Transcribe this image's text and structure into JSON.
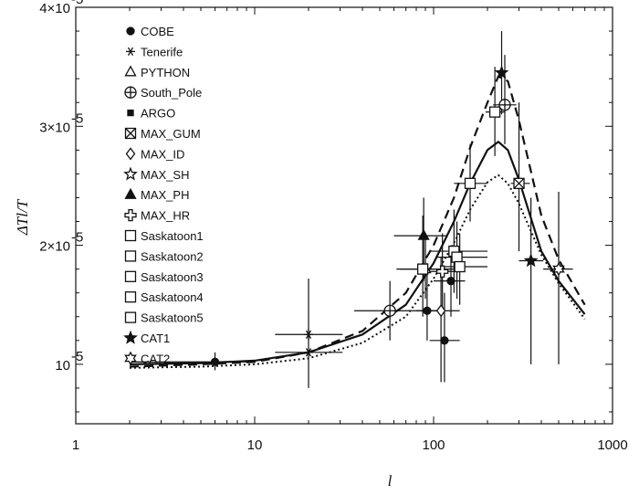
{
  "chart_data": {
    "type": "scatter",
    "xscale": "log",
    "xlim": [
      1,
      1000
    ],
    "ylim": [
      0.5,
      4
    ],
    "y_multiplier_label": "×10⁻⁵",
    "xlabel": "l",
    "ylabel": "ΔTl/T",
    "x_ticks": [
      1,
      10,
      100,
      1000
    ],
    "x_tick_labels": [
      "1",
      "10",
      "100",
      "1000"
    ],
    "y_ticks": [
      1,
      2,
      3,
      4
    ],
    "y_tick_labels": [
      "10",
      "2×10",
      "3×10",
      "4×10"
    ],
    "legend_position": "top-left",
    "legend": [
      {
        "name": "COBE",
        "marker": "filled-circle"
      },
      {
        "name": "Tenerife",
        "marker": "asterisk"
      },
      {
        "name": "PYTHON",
        "marker": "open-triangle"
      },
      {
        "name": "South_Pole",
        "marker": "circle-plus"
      },
      {
        "name": "ARGO",
        "marker": "filled-square"
      },
      {
        "name": "MAX_GUM",
        "marker": "square-cross"
      },
      {
        "name": "MAX_ID",
        "marker": "open-diamond"
      },
      {
        "name": "MAX_SH",
        "marker": "open-star"
      },
      {
        "name": "MAX_PH",
        "marker": "filled-triangle"
      },
      {
        "name": "MAX_HR",
        "marker": "open-cross"
      },
      {
        "name": "Saskatoon1",
        "marker": "open-square"
      },
      {
        "name": "Saskatoon2",
        "marker": "open-square"
      },
      {
        "name": "Saskatoon3",
        "marker": "open-square"
      },
      {
        "name": "Saskatoon4",
        "marker": "open-square"
      },
      {
        "name": "Saskatoon5",
        "marker": "open-square"
      },
      {
        "name": "CAT1",
        "marker": "filled-star"
      },
      {
        "name": "CAT2",
        "marker": "open-hexagram"
      }
    ],
    "points": [
      {
        "marker": "filled-circle",
        "x": 6,
        "y": 1.02,
        "xerr": [
          2,
          10
        ],
        "yerr": [
          0.95,
          1.1
        ]
      },
      {
        "marker": "asterisk",
        "x": 20,
        "y": 1.1,
        "xerr": [
          13,
          31
        ],
        "yerr": [
          0.8,
          1.72
        ]
      },
      {
        "marker": "asterisk",
        "x": 20,
        "y": 1.25,
        "xerr": [
          13,
          31
        ],
        "yerr": [
          1.2,
          1.3
        ]
      },
      {
        "marker": "circle-plus",
        "x": 57,
        "y": 1.45,
        "xerr": [
          36,
          88
        ],
        "yerr": [
          1.2,
          1.7
        ]
      },
      {
        "marker": "filled-circle",
        "x": 92,
        "y": 1.45,
        "xerr": [
          80,
          110
        ],
        "yerr": [
          1.2,
          1.85
        ]
      },
      {
        "marker": "filled-triangle",
        "x": 88,
        "y": 2.08,
        "xerr": [
          60,
          120
        ],
        "yerr": [
          1.7,
          2.4
        ]
      },
      {
        "marker": "open-triangle",
        "x": 90,
        "y": 1.8,
        "xerr": [
          65,
          125
        ],
        "yerr": [
          1.55,
          2.05
        ]
      },
      {
        "marker": "open-square",
        "x": 87,
        "y": 1.8,
        "xerr": [
          62,
          130
        ],
        "yerr": [
          1.4,
          2.25
        ]
      },
      {
        "marker": "open-diamond",
        "x": 110,
        "y": 1.45,
        "xerr": [
          90,
          140
        ],
        "yerr": [
          0.85,
          1.9
        ]
      },
      {
        "marker": "open-cross",
        "x": 112,
        "y": 1.78,
        "xerr": [
          95,
          140
        ],
        "yerr": [
          1.45,
          2.1
        ]
      },
      {
        "marker": "filled-circle",
        "x": 115,
        "y": 1.2,
        "xerr": [
          95,
          140
        ],
        "yerr": [
          0.85,
          1.6
        ]
      },
      {
        "marker": "filled-circle",
        "x": 125,
        "y": 1.7,
        "xerr": [
          100,
          150
        ],
        "yerr": [
          1.4,
          2.0
        ]
      },
      {
        "marker": "open-square",
        "x": 130,
        "y": 1.95,
        "xerr": [
          95,
          200
        ],
        "yerr": [
          1.6,
          2.3
        ]
      },
      {
        "marker": "open-square",
        "x": 135,
        "y": 1.9,
        "xerr": [
          105,
          200
        ],
        "yerr": [
          1.55,
          2.2
        ]
      },
      {
        "marker": "open-square",
        "x": 140,
        "y": 1.82,
        "xerr": [
          110,
          200
        ],
        "yerr": [
          1.5,
          2.1
        ]
      },
      {
        "marker": "open-square",
        "x": 160,
        "y": 2.52,
        "xerr": [
          130,
          200
        ],
        "yerr": [
          2.2,
          2.85
        ]
      },
      {
        "marker": "open-square",
        "x": 220,
        "y": 3.12,
        "xerr": [
          195,
          250
        ],
        "yerr": [
          2.75,
          3.5
        ]
      },
      {
        "marker": "circle-plus",
        "x": 250,
        "y": 3.18,
        "xerr": [
          215,
          290
        ],
        "yerr": [
          2.85,
          3.6
        ]
      },
      {
        "marker": "filled-star",
        "x": 240,
        "y": 3.45,
        "xerr": [
          230,
          250
        ],
        "yerr": [
          3.1,
          3.8
        ]
      },
      {
        "marker": "square-cross",
        "x": 300,
        "y": 2.52,
        "xerr": [
          270,
          345
        ],
        "yerr": [
          1.95,
          3.2
        ]
      },
      {
        "marker": "filled-star",
        "x": 350,
        "y": 1.87,
        "xerr": [
          300,
          410
        ],
        "yerr": [
          1.0,
          2.4
        ]
      },
      {
        "marker": "open-hexagram",
        "x": 500,
        "y": 1.8,
        "xerr": [
          410,
          600
        ],
        "yerr": [
          1.0,
          2.45
        ]
      }
    ],
    "curves": [
      {
        "style": "solid",
        "x": [
          2,
          5,
          10,
          20,
          40,
          70,
          100,
          130,
          160,
          200,
          230,
          260,
          300,
          400,
          500,
          700
        ],
        "y": [
          1.0,
          1.01,
          1.03,
          1.1,
          1.25,
          1.5,
          1.85,
          2.2,
          2.52,
          2.8,
          2.87,
          2.8,
          2.55,
          1.95,
          1.7,
          1.42
        ]
      },
      {
        "style": "dashed",
        "x": [
          2,
          5,
          10,
          20,
          40,
          70,
          100,
          130,
          160,
          200,
          230,
          260,
          300,
          400,
          500,
          700
        ],
        "y": [
          0.98,
          1.0,
          1.02,
          1.1,
          1.28,
          1.6,
          2.0,
          2.4,
          2.82,
          3.2,
          3.42,
          3.38,
          3.05,
          2.25,
          1.88,
          1.5
        ]
      },
      {
        "style": "dotted",
        "x": [
          2,
          5,
          10,
          20,
          40,
          70,
          100,
          130,
          160,
          200,
          230,
          260,
          300,
          400,
          500,
          700
        ],
        "y": [
          0.97,
          0.98,
          1.0,
          1.05,
          1.18,
          1.4,
          1.72,
          2.02,
          2.3,
          2.53,
          2.59,
          2.52,
          2.35,
          1.92,
          1.68,
          1.38
        ]
      }
    ]
  }
}
